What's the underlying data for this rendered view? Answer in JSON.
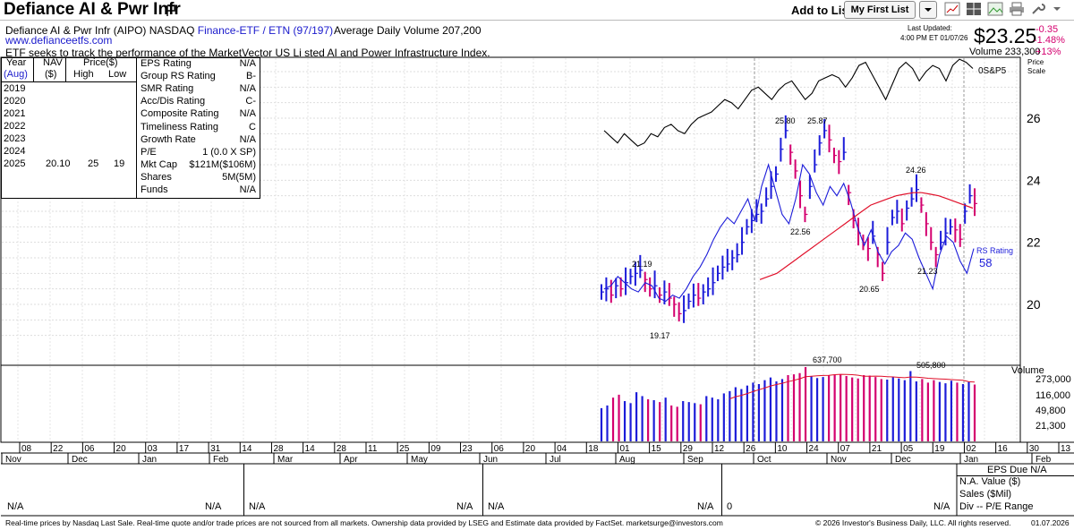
{
  "header": {
    "title": "Defiance AI & Pwr Infr",
    "add_to_list_label": "Add to List:",
    "list_name": "My First List",
    "line1_name": "Defiance AI & Pwr Infr",
    "line1_ticker": "(AIPO) NASDAQ",
    "line1_type": "Finance-ETF / ETN (97/197)",
    "website": "www.defianceetfs.com",
    "description": "ETF seeks to track the performance of the MarketVector US Li sted AI and Power Infrastructure Index.",
    "avg_volume": "Average Daily Volume 207,200",
    "last_updated_label": "Last Updated:",
    "last_updated_time": "4:00 PM ET 01/07/26",
    "price": "$23.25",
    "change": "-0.35",
    "change_pct": "-1.48%",
    "volume": "Volume 233,300",
    "volume_pct": "+13%"
  },
  "colors": {
    "up": "#1c1cd9",
    "down": "#d4006f",
    "ma": "#e0102a",
    "rs": "#1c1cd9",
    "link": "#1a1acc"
  },
  "icons": [
    "chevron-down-icon",
    "chart-icon",
    "grid-icon",
    "image-icon",
    "print-icon",
    "wrench-icon"
  ],
  "table": {
    "col_year": "Year",
    "col_year_sub": "(Aug)",
    "col_nav": "NAV",
    "col_nav_sub": "($)",
    "col_price": "Price($)",
    "col_high": "High",
    "col_low": "Low",
    "rows": [
      {
        "year": "2019",
        "nav": "",
        "high": "",
        "low": ""
      },
      {
        "year": "2020",
        "nav": "",
        "high": "",
        "low": ""
      },
      {
        "year": "2021",
        "nav": "",
        "high": "",
        "low": ""
      },
      {
        "year": "2022",
        "nav": "",
        "high": "",
        "low": ""
      },
      {
        "year": "2023",
        "nav": "",
        "high": "",
        "low": ""
      },
      {
        "year": "2024",
        "nav": "",
        "high": "",
        "low": ""
      },
      {
        "year": "2025",
        "nav": "20.10",
        "high": "25",
        "low": "19"
      }
    ],
    "ratings": [
      {
        "label": "EPS Rating",
        "value": "N/A"
      },
      {
        "label": "Group RS Rating",
        "value": "B-"
      },
      {
        "label": "SMR Rating",
        "value": "N/A"
      },
      {
        "label": "Acc/Dis Rating",
        "value": "C-"
      },
      {
        "label": "Composite Rating",
        "value": "N/A"
      },
      {
        "label": "Timeliness Rating",
        "value": "C"
      },
      {
        "label": "Growth Rate",
        "value": "N/A"
      },
      {
        "label": "P/E",
        "value": "1 (0.0 X SP)"
      },
      {
        "label": "Mkt Cap",
        "value": "$121M($106M)"
      },
      {
        "label": "Shares",
        "value": "5M(5M)"
      },
      {
        "label": "Funds",
        "value": "N/A"
      }
    ]
  },
  "chart_data": {
    "type": "line",
    "price_axis": {
      "label_top": "Price",
      "label_top2": "Scale",
      "ticks": [
        "26",
        "24",
        "22",
        "20"
      ],
      "tick_values": [
        26,
        24,
        22,
        20
      ]
    },
    "volume_axis": {
      "label": "Volume",
      "ticks": [
        "273,000",
        "116,000",
        "49,800",
        "21,300"
      ]
    },
    "sp500_label": "0S&P5",
    "rs_label": "RS Rating",
    "rs_value": "58",
    "annotations": [
      {
        "text": "21.19",
        "value": 21.19
      },
      {
        "text": "19.17",
        "value": 19.17
      },
      {
        "text": "25.80",
        "value": 25.8
      },
      {
        "text": "25.87",
        "value": 25.87
      },
      {
        "text": "22.56",
        "value": 22.56
      },
      {
        "text": "20.65",
        "value": 20.65
      },
      {
        "text": "24.26",
        "value": 24.26
      },
      {
        "text": "21.23",
        "value": 21.23
      },
      {
        "text": "637,700",
        "value": 637700
      },
      {
        "text": "505,800",
        "value": 505800
      }
    ],
    "date_ticks": [
      "08",
      "22",
      "06",
      "20",
      "03",
      "17",
      "31",
      "14",
      "28",
      "14",
      "28",
      "11",
      "25",
      "09",
      "23",
      "06",
      "20",
      "04",
      "18",
      "01",
      "15",
      "29",
      "12",
      "26",
      "10",
      "24",
      "07",
      "21",
      "05",
      "19",
      "02",
      "16",
      "30",
      "13"
    ],
    "month_labels": [
      "Nov",
      "Dec",
      "Jan",
      "Feb",
      "Mar",
      "Apr",
      "May",
      "Jun",
      "Jul",
      "Aug",
      "Sep",
      "Oct",
      "Nov",
      "Dec",
      "Jan",
      "Feb"
    ],
    "price_series": [
      20.4,
      20.5,
      20.3,
      20.6,
      20.5,
      20.7,
      20.9,
      21.0,
      21.1,
      20.8,
      20.5,
      20.6,
      20.3,
      20.4,
      20.2,
      20.0,
      19.7,
      19.8,
      20.1,
      20.3,
      20.2,
      20.4,
      20.5,
      20.7,
      21.0,
      21.2,
      21.3,
      21.5,
      21.6,
      22.0,
      22.5,
      22.7,
      22.9,
      23.0,
      23.4,
      23.8,
      24.2,
      25.0,
      25.6,
      24.9,
      24.3,
      23.5,
      22.9,
      23.8,
      24.5,
      25.2,
      25.6,
      25.3,
      24.8,
      24.6,
      24.9,
      23.6,
      22.7,
      22.3,
      22.0,
      21.8,
      22.2,
      21.6,
      21.0,
      22.0,
      22.8,
      23.0,
      22.6,
      23.1,
      23.4,
      23.7,
      23.2,
      22.6,
      22.0,
      21.6,
      22.0,
      22.3,
      22.5,
      22.4,
      22.1,
      23.0,
      23.5,
      23.25
    ],
    "ma_series": [
      20.8,
      20.9,
      21.0,
      21.2,
      21.4,
      21.6,
      21.8,
      22.0,
      22.2,
      22.4,
      22.6,
      22.8,
      23.0,
      23.2,
      23.3,
      23.4,
      23.5,
      23.55,
      23.6,
      23.6,
      23.55,
      23.5,
      23.4,
      23.3,
      23.2,
      23.1
    ],
    "rs_series": [
      20.5,
      20.6,
      20.9,
      20.7,
      20.5,
      20.4,
      20.7,
      20.6,
      20.2,
      20.1,
      20.3,
      20.2,
      20.5,
      20.9,
      21.2,
      21.6,
      22.1,
      22.5,
      22.8,
      22.6,
      23.0,
      23.4,
      22.7,
      23.8,
      24.5,
      23.7,
      22.9,
      22.6,
      23.4,
      24.5,
      24.2,
      23.6,
      23.2,
      23.8,
      23.5,
      23.9,
      23.3,
      22.5,
      21.9,
      22.4,
      21.7,
      21.3,
      21.7,
      21.9,
      22.3,
      22.1,
      21.5,
      21.0,
      20.5,
      21.6,
      22.2,
      22.0,
      21.4,
      21.0,
      21.8
    ],
    "sp_series": [
      25.6,
      25.4,
      25.2,
      25.5,
      25.3,
      25.1,
      25.2,
      25.5,
      25.4,
      25.7,
      25.8,
      25.6,
      25.5,
      25.8,
      26.0,
      26.1,
      26.2,
      26.4,
      26.6,
      26.5,
      26.3,
      26.6,
      26.9,
      27.0,
      26.8,
      26.6,
      26.9,
      27.1,
      27.2,
      26.9,
      26.6,
      26.8,
      27.2,
      27.3,
      27.4,
      27.3,
      27.0,
      27.3,
      27.7,
      27.8,
      27.4,
      27.0,
      26.6,
      27.1,
      27.6,
      27.8,
      27.6,
      27.2,
      27.5,
      27.7,
      27.6,
      27.2,
      27.7,
      27.9,
      27.8,
      27.6
    ],
    "volume_series": [
      60000,
      70000,
      110000,
      130000,
      90000,
      80000,
      150000,
      120000,
      100000,
      95000,
      85000,
      110000,
      70000,
      65000,
      90000,
      85000,
      80000,
      75000,
      120000,
      110000,
      100000,
      140000,
      160000,
      200000,
      180000,
      220000,
      260000,
      240000,
      300000,
      350000,
      280000,
      320000,
      400000,
      420000,
      450000,
      637700,
      380000,
      340000,
      360000,
      390000,
      410000,
      420000,
      380000,
      350000,
      330000,
      400000,
      390000,
      360000,
      320000,
      310000,
      360000,
      330000,
      300000,
      505800,
      280000,
      320000,
      260000,
      300000,
      270000,
      250000,
      290000,
      260000,
      240000,
      270000,
      233300
    ],
    "bottom": {
      "eps_due": "EPS Due N/A",
      "na_value": "N.A. Value ($)",
      "sales": "Sales ($Mil)",
      "div_pe": "Div -- P/E Range",
      "row_values": [
        "N/A",
        "N/A",
        "N/A",
        "N/A",
        "N/A",
        "N/A",
        "0",
        "N/A"
      ]
    }
  },
  "footer": {
    "disclaimer": "Real-time prices by Nasdaq Last Sale. Real-time quote and/or trade prices are not sourced from all markets. Ownership data provided by LSEG and Estimate data provided by FactSet. marketsurge@investors.com",
    "copyright": "© 2026 Investor's Business Daily, LLC. All rights reserved.",
    "date": "01.07.2026"
  }
}
